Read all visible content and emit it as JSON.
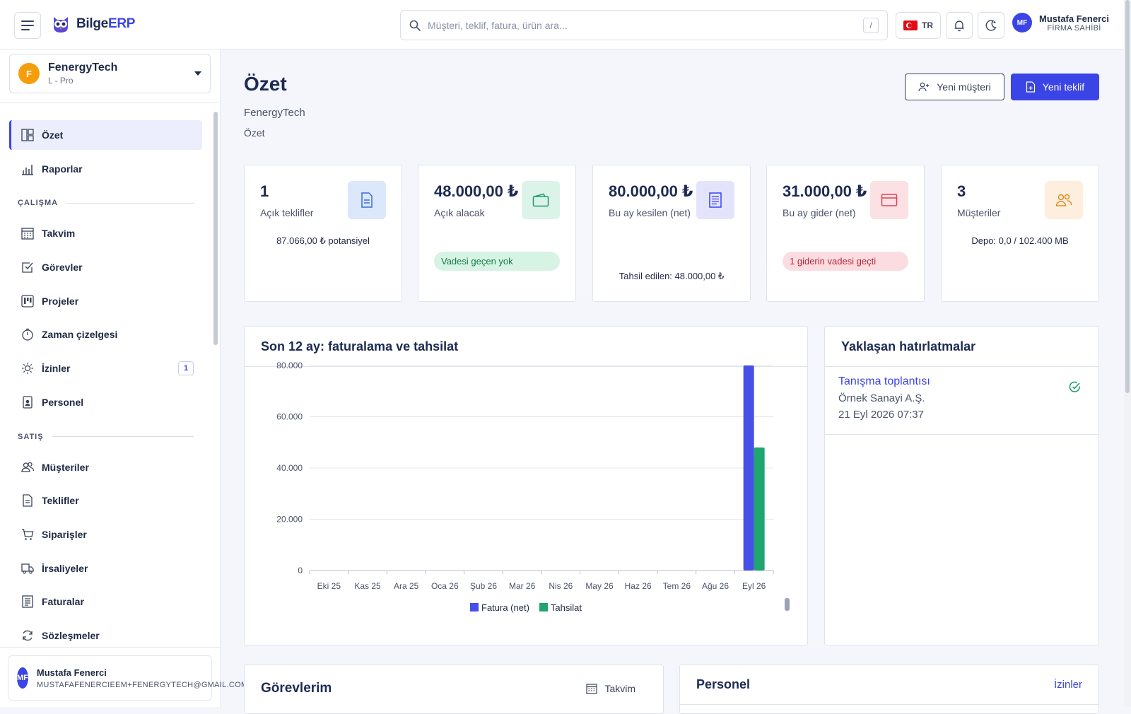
{
  "app": {
    "brand_main": "Bilge",
    "brand_accent": "ERP",
    "accent_color": "#3b45e6"
  },
  "header": {
    "search_placeholder": "Müşteri, teklif, fatura, ürün ara...",
    "search_shortcut": "/",
    "language": "TR",
    "user_initials": "MF",
    "user_name": "Mustafa Fenerci",
    "user_role": "FİRMA SAHİBİ"
  },
  "sidebar": {
    "company_initial": "F",
    "company_name": "FenergyTech",
    "company_plan": "L - Pro",
    "items": [
      {
        "label": "Özet",
        "icon": "dashboard-icon"
      },
      {
        "label": "Raporlar",
        "icon": "bar-chart-icon"
      }
    ],
    "section_work": "ÇALIŞMA",
    "work_items": [
      {
        "label": "Takvim",
        "icon": "calendar-icon"
      },
      {
        "label": "Görevler",
        "icon": "task-check-icon"
      },
      {
        "label": "Projeler",
        "icon": "kanban-icon"
      },
      {
        "label": "Zaman çizelgesi",
        "icon": "stopwatch-icon"
      },
      {
        "label": "İzinler",
        "icon": "sun-icon",
        "badge": "1"
      },
      {
        "label": "Personel",
        "icon": "id-badge-icon"
      }
    ],
    "section_sales": "SATIŞ",
    "sales_items": [
      {
        "label": "Müşteriler",
        "icon": "users-icon"
      },
      {
        "label": "Teklifler",
        "icon": "document-icon"
      },
      {
        "label": "Siparişler",
        "icon": "cart-icon"
      },
      {
        "label": "İrsaliyeler",
        "icon": "truck-icon"
      },
      {
        "label": "Faturalar",
        "icon": "invoice-icon"
      },
      {
        "label": "Sözleşmeler",
        "icon": "refresh-icon"
      }
    ],
    "footer_user_initials": "MF",
    "footer_user_name": "Mustafa Fenerci",
    "footer_user_email": "MUSTAFAFENERCIEEM+FENERGYTECH@GMAIL.COM"
  },
  "page": {
    "title": "Özet",
    "subtitle": "FenergyTech",
    "breadcrumb": "Özet",
    "new_customer": "Yeni müşteri",
    "new_quote": "Yeni teklif"
  },
  "stats": [
    {
      "value": "1",
      "label": "Açık teklifler",
      "note": "87.066,00 ₺ potansiyel",
      "icon": "document-icon",
      "color": "#dbe7fb"
    },
    {
      "value": "48.000,00 ₺",
      "label": "Açık alacak",
      "pill": "Vadesi geçen yok",
      "icon": "wallet-icon",
      "color": "#dcf3ea"
    },
    {
      "value": "80.000,00 ₺",
      "label": "Bu ay kesilen (net)",
      "note": "Tahsil edilen: 48.000,00 ₺",
      "icon": "invoice-icon",
      "color": "#e3e4fb"
    },
    {
      "value": "31.000,00 ₺",
      "label": "Bu ay gider (net)",
      "pill": "1 giderin vadesi geçti",
      "icon": "card-icon",
      "color": "#fbe1e3"
    },
    {
      "value": "3",
      "label": "Müşteriler",
      "note": "Depo: 0,0 / 102.400 MB",
      "icon": "users-icon",
      "color": "#fdeedd"
    }
  ],
  "chart_title": "Son 12 ay: faturalama ve tahsilat",
  "chart_data": {
    "type": "bar",
    "categories": [
      "Eki 25",
      "Kas 25",
      "Ara 25",
      "Oca 26",
      "Şub 26",
      "Mar 26",
      "Nis 26",
      "May 26",
      "Haz 26",
      "Tem 26",
      "Ağu 26",
      "Eyl 26"
    ],
    "series": [
      {
        "name": "Fatura (net)",
        "color": "#4650e6",
        "values": [
          0,
          0,
          0,
          0,
          0,
          0,
          0,
          0,
          0,
          0,
          0,
          80000
        ]
      },
      {
        "name": "Tahsilat",
        "color": "#1fa56f",
        "values": [
          0,
          0,
          0,
          0,
          0,
          0,
          0,
          0,
          0,
          0,
          0,
          48000
        ]
      }
    ],
    "yticks": [
      "0",
      "20.000",
      "40.000",
      "60.000",
      "80.000"
    ],
    "ylim": [
      0,
      80000
    ],
    "legend": "bottom",
    "grid": true
  },
  "reminders": {
    "title": "Yaklaşan hatırlatmalar",
    "items": [
      {
        "title": "Tanışma toplantısı",
        "company": "Örnek Sanayi A.Ş.",
        "date": "21 Eyl 2026 07:37"
      }
    ]
  },
  "tasks": {
    "title": "Görevlerim",
    "link": "Takvim"
  },
  "staff": {
    "title": "Personel",
    "link": "İzinler"
  }
}
